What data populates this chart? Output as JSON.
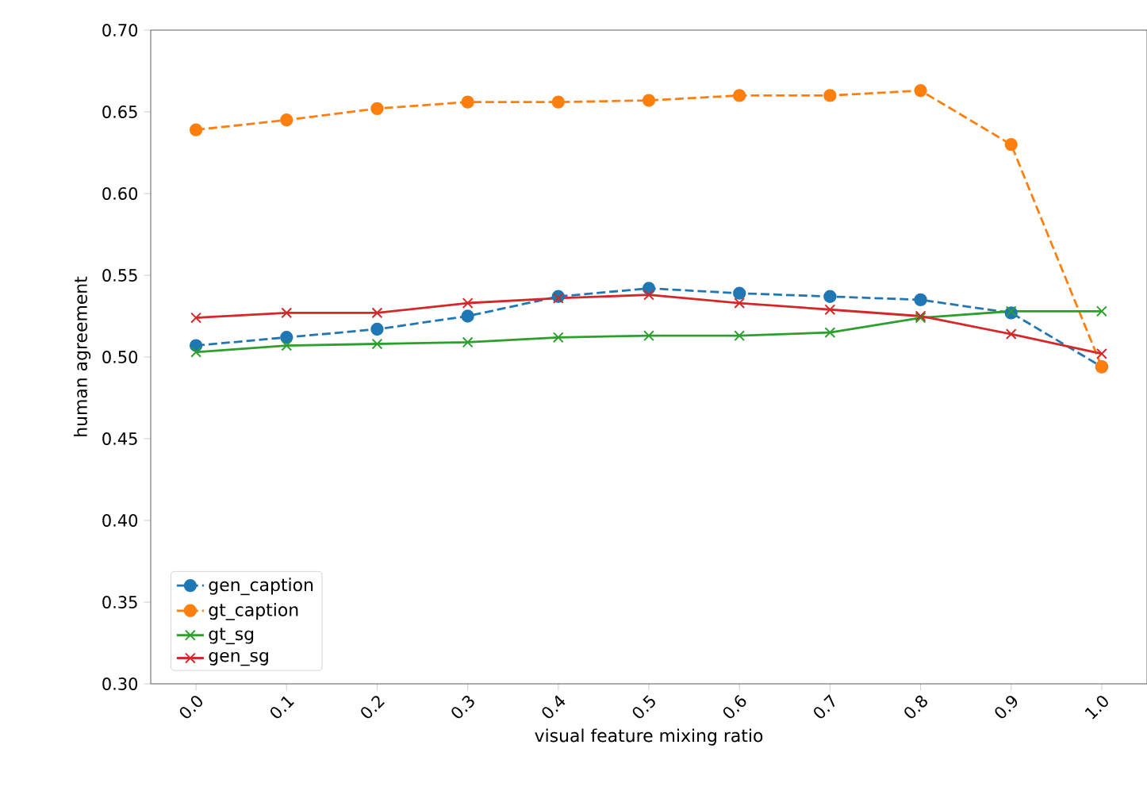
{
  "chart_data": {
    "type": "line",
    "xlabel": "visual feature mixing ratio",
    "ylabel": "human agreement",
    "x": [
      0.0,
      0.1,
      0.2,
      0.3,
      0.4,
      0.5,
      0.6,
      0.7,
      0.8,
      0.9,
      1.0
    ],
    "xlim": [
      -0.05,
      1.05
    ],
    "xticks": [
      {
        "value": 0.0,
        "label": "0.0"
      },
      {
        "value": 0.1,
        "label": "0.1"
      },
      {
        "value": 0.2,
        "label": "0.2"
      },
      {
        "value": 0.3,
        "label": "0.3"
      },
      {
        "value": 0.4,
        "label": "0.4"
      },
      {
        "value": 0.5,
        "label": "0.5"
      },
      {
        "value": 0.6,
        "label": "0.6"
      },
      {
        "value": 0.7,
        "label": "0.7"
      },
      {
        "value": 0.8,
        "label": "0.8"
      },
      {
        "value": 0.9,
        "label": "0.9"
      },
      {
        "value": 1.0,
        "label": "1.0"
      }
    ],
    "ylim": [
      0.3,
      0.7
    ],
    "yticks": [
      {
        "value": 0.3,
        "label": "0.30"
      },
      {
        "value": 0.35,
        "label": "0.35"
      },
      {
        "value": 0.4,
        "label": "0.40"
      },
      {
        "value": 0.45,
        "label": "0.45"
      },
      {
        "value": 0.5,
        "label": "0.50"
      },
      {
        "value": 0.55,
        "label": "0.55"
      },
      {
        "value": 0.6,
        "label": "0.60"
      },
      {
        "value": 0.65,
        "label": "0.65"
      },
      {
        "value": 0.7,
        "label": "0.70"
      }
    ],
    "legend": "bottom left",
    "grid": false,
    "series": [
      {
        "name": "gen_caption",
        "color": "#1f77b4",
        "marker": "circle",
        "line_style": "dashed",
        "values": [
          0.507,
          0.512,
          0.517,
          0.525,
          0.537,
          0.542,
          0.539,
          0.537,
          0.535,
          0.527,
          0.494
        ]
      },
      {
        "name": "gt_caption",
        "color": "#ff7f0e",
        "marker": "circle",
        "line_style": "dashed",
        "values": [
          0.639,
          0.645,
          0.652,
          0.656,
          0.656,
          0.657,
          0.66,
          0.66,
          0.663,
          0.63,
          0.494
        ]
      },
      {
        "name": "gt_sg",
        "color": "#2ca02c",
        "marker": "cross",
        "line_style": "solid",
        "values": [
          0.503,
          0.507,
          0.508,
          0.509,
          0.512,
          0.513,
          0.513,
          0.515,
          0.524,
          0.528,
          0.528
        ]
      },
      {
        "name": "gen_sg",
        "color": "#d62728",
        "marker": "cross",
        "line_style": "solid",
        "values": [
          0.524,
          0.527,
          0.527,
          0.533,
          0.536,
          0.538,
          0.533,
          0.529,
          0.525,
          0.514,
          0.502
        ]
      }
    ]
  }
}
